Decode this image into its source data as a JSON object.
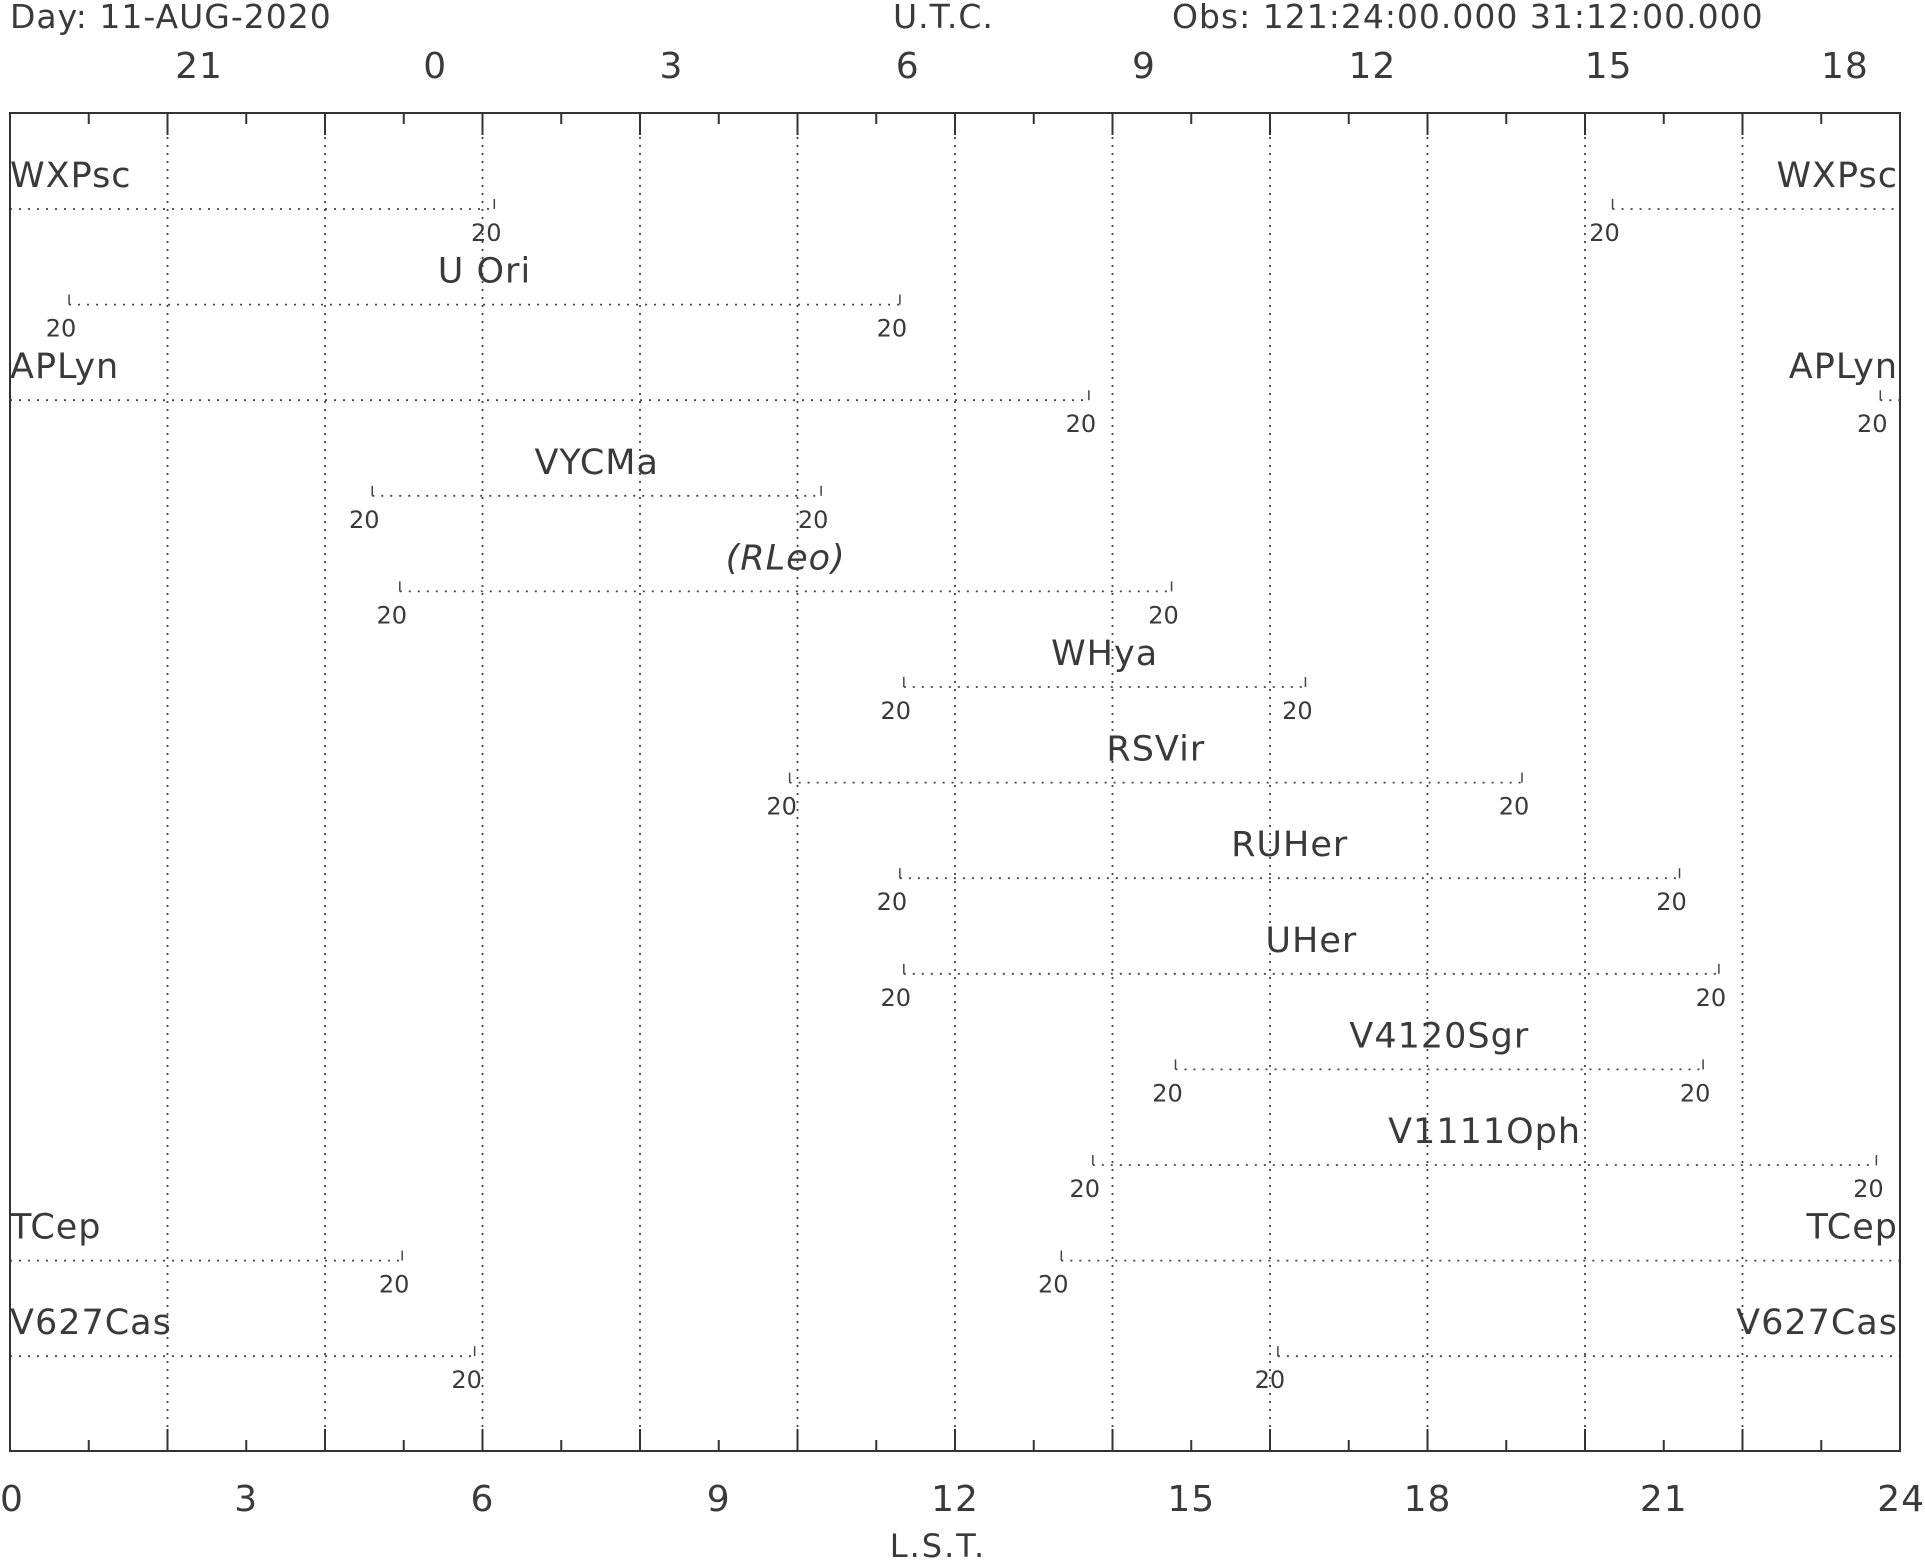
{
  "header": {
    "day": "Day: 11-AUG-2020",
    "utc_label": "U.T.C.",
    "obs": "Obs: 121:24:00.000 31:12:00.000"
  },
  "chart_data": {
    "type": "visibility-timeline",
    "xlabel": "L.S.T.",
    "xlim": [
      0,
      24
    ],
    "x_ticks": [
      "0",
      "3",
      "6",
      "9",
      "12",
      "15",
      "18",
      "21",
      "24"
    ],
    "utc_ticks": [
      {
        "label": "21",
        "lst": 2.4
      },
      {
        "label": "0",
        "lst": 5.4
      },
      {
        "label": "3",
        "lst": 8.4
      },
      {
        "label": "6",
        "lst": 11.4
      },
      {
        "label": "9",
        "lst": 14.4
      },
      {
        "label": "12",
        "lst": 17.3
      },
      {
        "label": "15",
        "lst": 20.3
      },
      {
        "label": "18",
        "lst": 23.3
      }
    ],
    "grid_lst": [
      2,
      4,
      6,
      8,
      10,
      12,
      14,
      16,
      18,
      20,
      22
    ],
    "elevation_label": "20",
    "stars": [
      {
        "name": "WXPsc",
        "italic": false,
        "segments": [
          [
            0,
            6.15
          ],
          [
            20.35,
            24
          ]
        ],
        "label_at": "edges"
      },
      {
        "name": "U Ori",
        "italic": false,
        "segments": [
          [
            0.75,
            11.3
          ]
        ],
        "label_at": "center"
      },
      {
        "name": "APLyn",
        "italic": false,
        "segments": [
          [
            0,
            13.7
          ],
          [
            23.75,
            24
          ]
        ],
        "label_at": "edges"
      },
      {
        "name": "VYCMa",
        "italic": false,
        "segments": [
          [
            4.6,
            10.3
          ]
        ],
        "label_at": "center"
      },
      {
        "name": "(RLeo)",
        "italic": true,
        "segments": [
          [
            4.95,
            14.75
          ]
        ],
        "label_at": "center"
      },
      {
        "name": "WHya",
        "italic": false,
        "segments": [
          [
            11.35,
            16.45
          ]
        ],
        "label_at": "center"
      },
      {
        "name": "RSVir",
        "italic": false,
        "segments": [
          [
            9.9,
            19.2
          ]
        ],
        "label_at": "center"
      },
      {
        "name": "RUHer",
        "italic": false,
        "segments": [
          [
            11.3,
            21.2
          ]
        ],
        "label_at": "center"
      },
      {
        "name": "UHer",
        "italic": false,
        "segments": [
          [
            11.35,
            21.7
          ]
        ],
        "label_at": "center"
      },
      {
        "name": "V4120Sgr",
        "italic": false,
        "segments": [
          [
            14.8,
            21.5
          ]
        ],
        "label_at": "center"
      },
      {
        "name": "V1111Oph",
        "italic": false,
        "segments": [
          [
            13.75,
            23.7
          ]
        ],
        "label_at": "center"
      },
      {
        "name": "TCep",
        "italic": false,
        "segments": [
          [
            0,
            4.98
          ],
          [
            13.35,
            24
          ]
        ],
        "label_at": "edges"
      },
      {
        "name": "V627Cas",
        "italic": false,
        "segments": [
          [
            0,
            5.9
          ],
          [
            16.1,
            24
          ]
        ],
        "label_at": "edges"
      }
    ]
  }
}
